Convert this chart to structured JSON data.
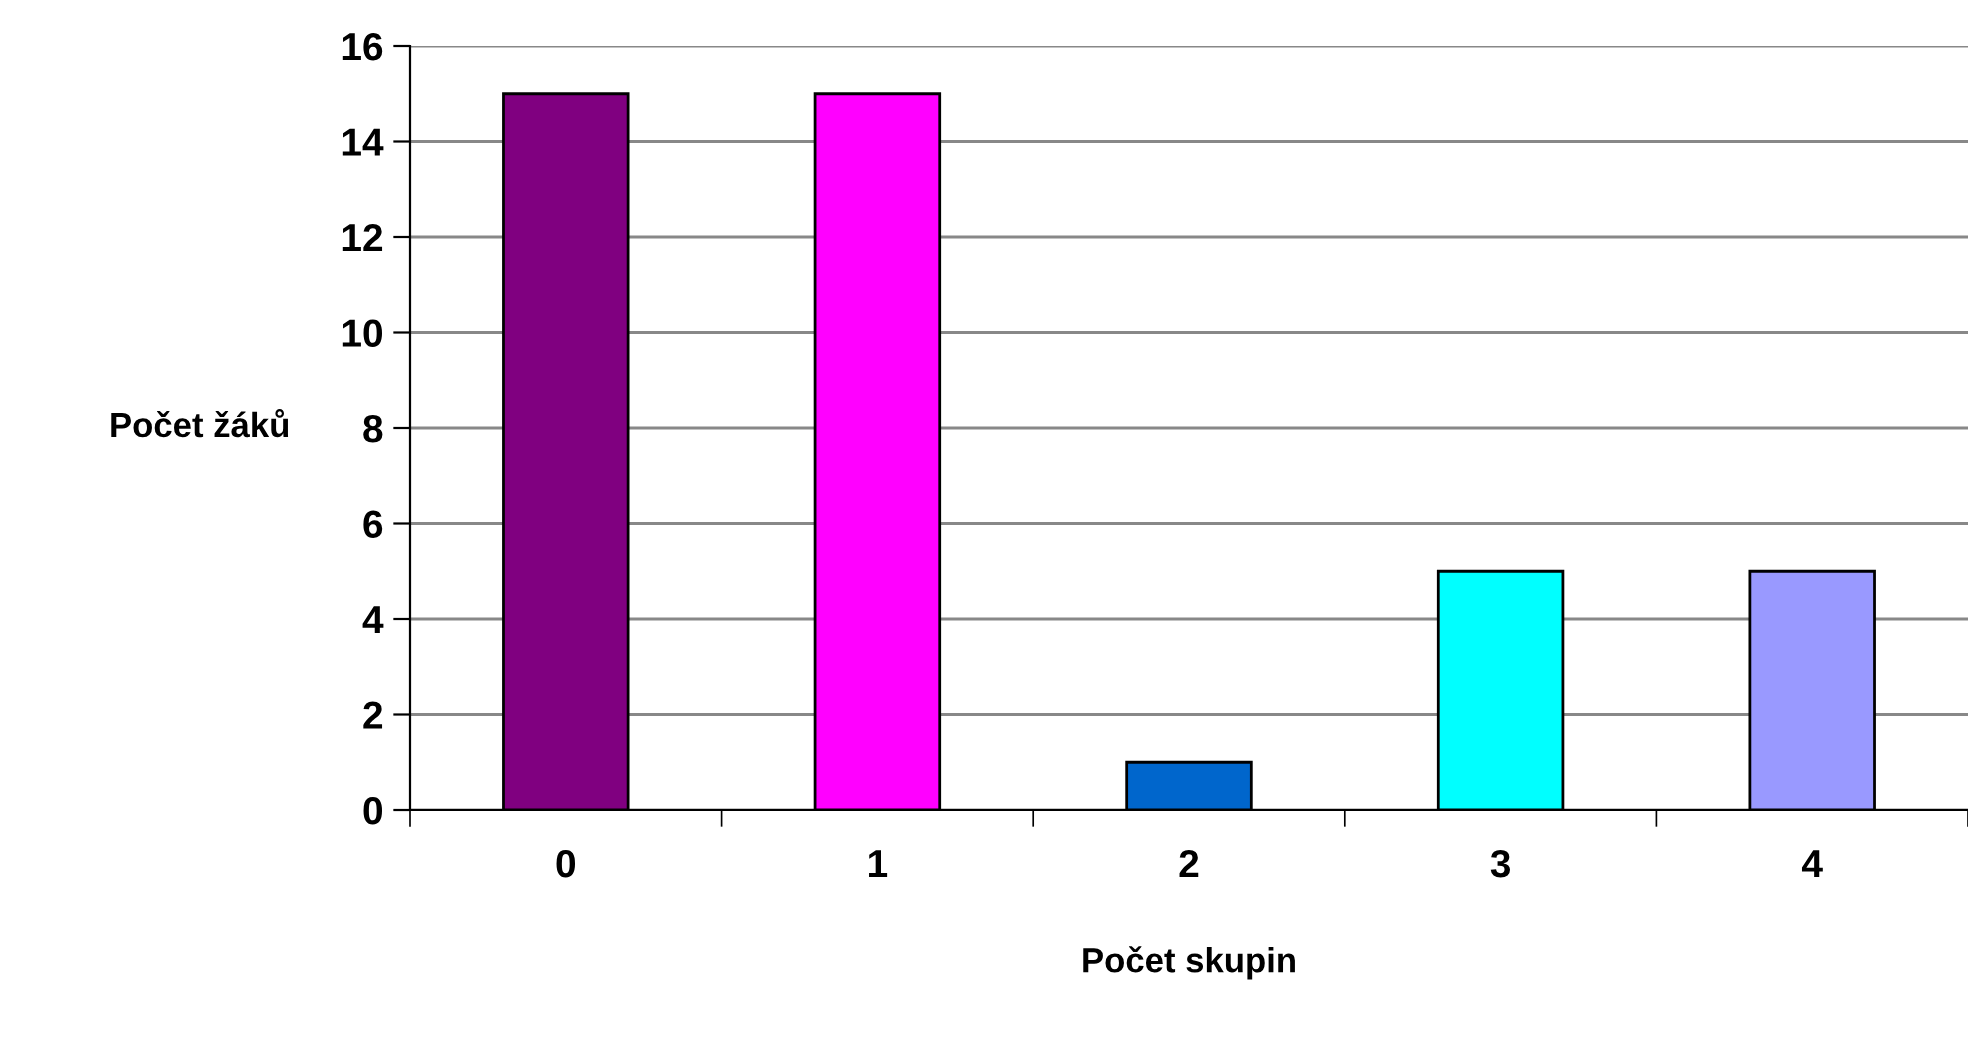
{
  "chart_data": {
    "type": "bar",
    "xlabel": "Počet skupin",
    "ylabel": "Počet žáků",
    "categories": [
      "0",
      "1",
      "2",
      "3",
      "4"
    ],
    "values": [
      15,
      15,
      1,
      5,
      5
    ],
    "colors": [
      "#800080",
      "#ff00ff",
      "#0066cc",
      "#00ffff",
      "#9999ff"
    ],
    "ylim": [
      0,
      16
    ],
    "yticks": [
      0,
      2,
      4,
      6,
      8,
      10,
      12,
      14,
      16
    ],
    "grid": "y",
    "legend": false
  }
}
